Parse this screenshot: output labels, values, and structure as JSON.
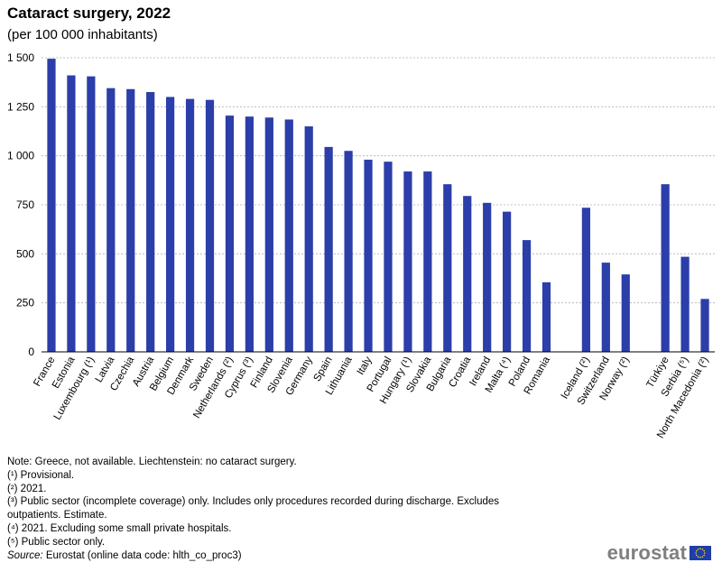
{
  "title": "Cataract surgery, 2022",
  "subtitle": "(per 100 000 inhabitants)",
  "colors": {
    "bar": "#2b3ea9",
    "grid": "#b0b0b0",
    "axis": "#000000",
    "logo": "#7f7f7f",
    "eu_blue": "#1f3fa6",
    "eu_star": "#ffd617"
  },
  "chart_data": {
    "type": "bar",
    "title": "Cataract surgery, 2022",
    "subtitle": "(per 100 000 inhabitants)",
    "ylim": [
      0,
      1500
    ],
    "yticks": [
      0,
      250,
      500,
      750,
      1000,
      1250,
      1500
    ],
    "ytick_labels": [
      "0",
      "250",
      "500",
      "750",
      "1 000",
      "1 250",
      "1 500"
    ],
    "grid": true,
    "categories": [
      "France",
      "Estonia",
      "Luxembourg (¹)",
      "Latvia",
      "Czechia",
      "Austria",
      "Belgium",
      "Denmark",
      "Sweden",
      "Netherlands (²)",
      "Cyprus (³)",
      "Finland",
      "Slovenia",
      "Germany",
      "Spain",
      "Lithuania",
      "Italy",
      "Portugal",
      "Hungary (¹)",
      "Slovakia",
      "Bulgaria",
      "Croatia",
      "Ireland",
      "Malta (⁴)",
      "Poland",
      "Romania",
      "",
      "Iceland (²)",
      "Switzerland",
      "Norway (²)",
      "",
      "Türkiye",
      "Serbia (⁵)",
      "North Macedonia (²)"
    ],
    "values": [
      1495,
      1410,
      1405,
      1345,
      1340,
      1325,
      1300,
      1290,
      1285,
      1205,
      1200,
      1195,
      1185,
      1150,
      1045,
      1025,
      980,
      970,
      920,
      920,
      855,
      795,
      760,
      715,
      570,
      355,
      null,
      735,
      455,
      395,
      null,
      855,
      485,
      270
    ]
  },
  "notes": [
    "Note: Greece, not available. Liechtenstein: no cataract surgery.",
    "(¹) Provisional.",
    "(²) 2021.",
    "(³) Public sector (incomplete coverage) only. Includes  only procedures recorded during discharge. Excludes",
    "outpatients. Estimate.",
    "(⁴) 2021. Excluding some small private hospitals.",
    "(⁵) Public sector only."
  ],
  "source_label": "Source:",
  "source_text": " Eurostat (online data code: hlth_co_proc3)",
  "logo_text": "eurostat"
}
